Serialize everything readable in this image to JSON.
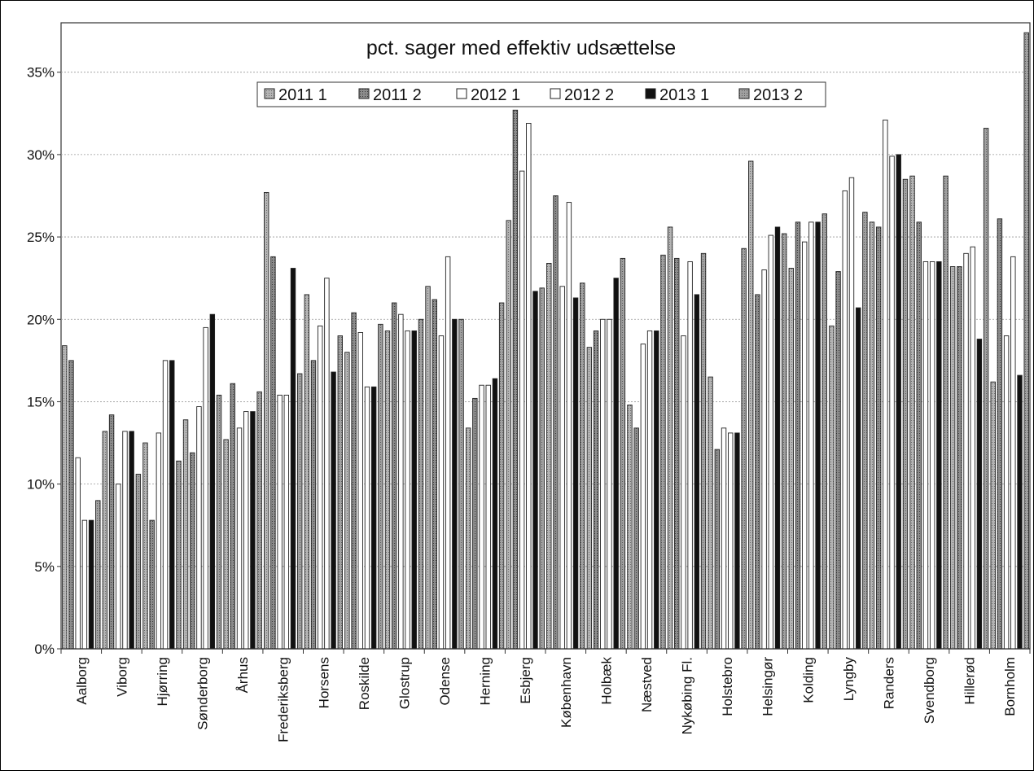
{
  "chart_data": {
    "type": "bar",
    "title": "pct. sager med effektiv udsættelse",
    "xlabel": "",
    "ylabel": "",
    "ylim": [
      0,
      0.38
    ],
    "yticks": [
      {
        "value": 0,
        "label": "0%"
      },
      {
        "value": 0.05,
        "label": "5%"
      },
      {
        "value": 0.1,
        "label": "10%"
      },
      {
        "value": 0.15,
        "label": "15%"
      },
      {
        "value": 0.2,
        "label": "20%"
      },
      {
        "value": 0.25,
        "label": "25%"
      },
      {
        "value": 0.3,
        "label": "30%"
      },
      {
        "value": 0.35,
        "label": "35%"
      }
    ],
    "grid": true,
    "legend_position": "top",
    "categories": [
      "Aalborg",
      "Viborg",
      "Hjørring",
      "Sønderborg",
      "Århus",
      "Frederiksberg",
      "Horsens",
      "Roskilde",
      "Glostrup",
      "Odense",
      "Herning",
      "Esbjerg",
      "København",
      "Holbæk",
      "Næstved",
      "Nykøbing Fl.",
      "Holstebro",
      "Helsingør",
      "Kolding",
      "Lyngby",
      "Randers",
      "Svendborg",
      "Hillerød",
      "Bornholm"
    ],
    "series": [
      {
        "name": "2011 1",
        "color": "#b4b4b4",
        "values": [
          0.184,
          0.132,
          0.125,
          0.139,
          0.127,
          0.277,
          0.215,
          0.18,
          0.193,
          0.22,
          0.134,
          0.26,
          0.234,
          0.183,
          0.148,
          0.256,
          0.165,
          0.296,
          0.231,
          0.196,
          0.259,
          0.287,
          0.232,
          0.162
        ]
      },
      {
        "name": "2011 2",
        "color": "#8c8c8c",
        "values": [
          0.175,
          0.142,
          0.078,
          0.119,
          0.161,
          0.238,
          0.175,
          0.204,
          0.21,
          0.212,
          0.152,
          0.327,
          0.275,
          0.193,
          0.134,
          0.237,
          0.121,
          0.215,
          0.259,
          0.229,
          0.256,
          0.259,
          0.232,
          0.261
        ]
      },
      {
        "name": "2012 1",
        "color": "#ffffff",
        "values": [
          0.116,
          0.1,
          0.131,
          0.147,
          0.134,
          0.154,
          0.196,
          0.192,
          0.203,
          0.19,
          0.16,
          0.29,
          0.22,
          0.2,
          0.185,
          0.19,
          0.134,
          0.23,
          0.247,
          0.278,
          0.321,
          0.235,
          0.24,
          0.19
        ]
      },
      {
        "name": "2012 2",
        "color": "#ffffff",
        "values": [
          0.078,
          0.132,
          0.175,
          0.195,
          0.144,
          0.154,
          0.225,
          0.159,
          0.193,
          0.238,
          0.16,
          0.319,
          0.271,
          0.2,
          0.193,
          0.235,
          0.131,
          0.251,
          0.259,
          0.286,
          0.299,
          0.235,
          0.244,
          0.238
        ]
      },
      {
        "name": "2013 1",
        "color": "#111111",
        "values": [
          0.078,
          0.132,
          0.175,
          0.203,
          0.144,
          0.231,
          0.168,
          0.159,
          0.193,
          0.2,
          0.164,
          0.217,
          0.213,
          0.225,
          0.193,
          0.215,
          0.131,
          0.256,
          0.259,
          0.207,
          0.3,
          0.235,
          0.188,
          0.166
        ]
      },
      {
        "name": "2013 2",
        "color": "#a0a0a0",
        "values": [
          0.09,
          0.106,
          0.114,
          0.154,
          0.156,
          0.167,
          0.19,
          0.197,
          0.2,
          0.2,
          0.21,
          0.219,
          0.222,
          0.237,
          0.239,
          0.24,
          0.243,
          0.252,
          0.264,
          0.265,
          0.285,
          0.287,
          0.316,
          0.374
        ]
      }
    ]
  }
}
